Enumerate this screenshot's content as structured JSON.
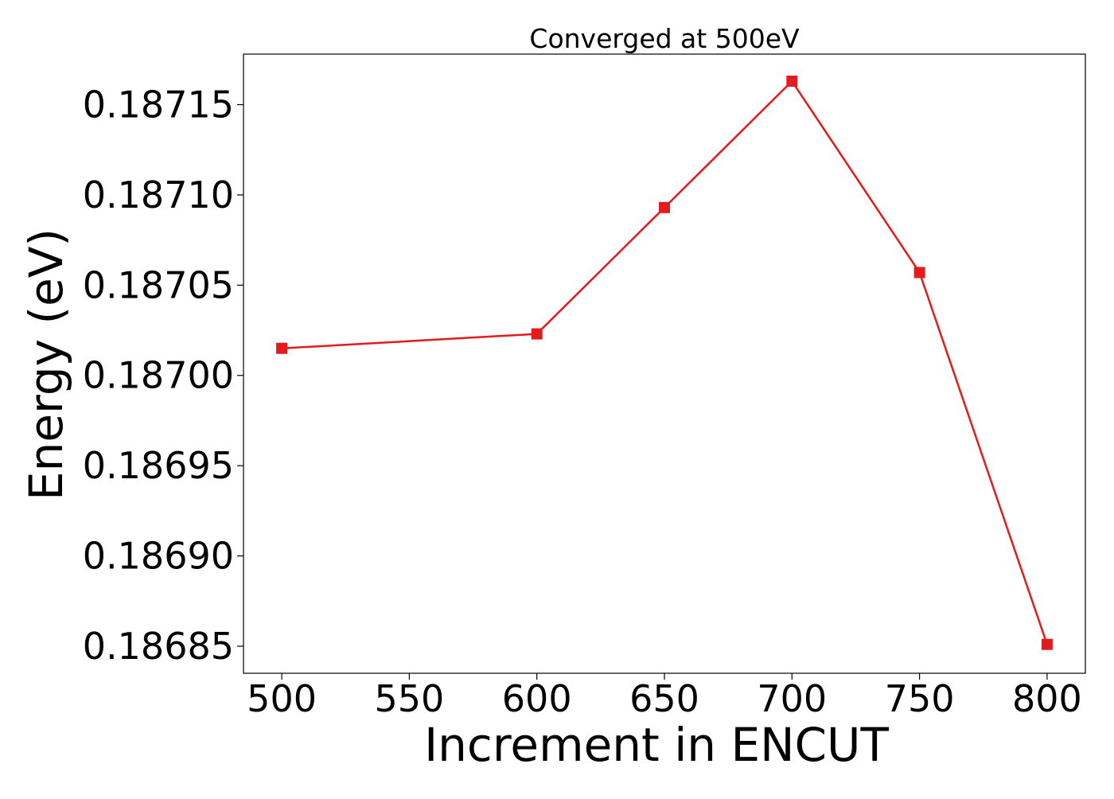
{
  "chart_data": {
    "type": "line",
    "title": "Converged at 500eV",
    "xlabel": "Increment in ENCUT",
    "ylabel": "Energy (eV)",
    "x": [
      500,
      600,
      650,
      700,
      750,
      800
    ],
    "series": [
      {
        "values": [
          0.187015,
          0.187023,
          0.187093,
          0.187163,
          0.187057,
          0.186851
        ],
        "color": "#e41a1c",
        "marker": "square"
      }
    ],
    "xlim": [
      485,
      815
    ],
    "ylim": [
      0.186835,
      0.187178
    ],
    "xticks": [
      500,
      550,
      600,
      650,
      700,
      750,
      800
    ],
    "xtick_labels": [
      "500",
      "550",
      "600",
      "650",
      "700",
      "750",
      "800"
    ],
    "yticks": [
      0.18685,
      0.1869,
      0.18695,
      0.187,
      0.18705,
      0.1871,
      0.18715
    ],
    "ytick_labels": [
      "0.18685",
      "0.18690",
      "0.18695",
      "0.18700",
      "0.18705",
      "0.18710",
      "0.18715"
    ],
    "grid": false,
    "legend": "none"
  }
}
